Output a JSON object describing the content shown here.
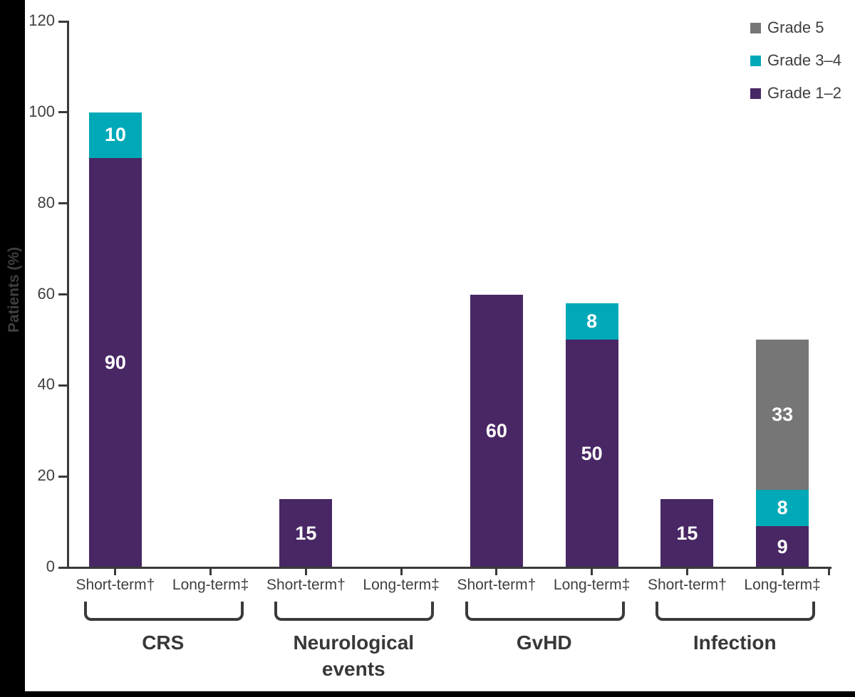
{
  "colors": {
    "background": "#ffffff",
    "frame": "#000000",
    "axis": "#3a3a3a",
    "text": "#3f3f3f",
    "bar_value_text": "#ffffff"
  },
  "chart_data": {
    "type": "bar",
    "stacked": true,
    "title": "",
    "xlabel": "",
    "ylabel": "Patients (%)",
    "ylim": [
      0,
      120
    ],
    "yticks": [
      0,
      20,
      40,
      60,
      80,
      100,
      120
    ],
    "grid": false,
    "legend_position": "top-right",
    "series": [
      {
        "key": "g12",
        "name": "Grade 1–2",
        "color": "#482764"
      },
      {
        "key": "g34",
        "name": "Grade 3–4",
        "color": "#00a9b8"
      },
      {
        "key": "g5",
        "name": "Grade 5",
        "color": "#767676"
      }
    ],
    "stack_order": [
      "g12",
      "g34",
      "g5"
    ],
    "legend": [
      {
        "series": "g5"
      },
      {
        "series": "g34"
      },
      {
        "series": "g12"
      }
    ],
    "groups": [
      {
        "label": "CRS",
        "bars": [
          {
            "label": "Short-term†",
            "values": {
              "g12": 90,
              "g34": 10,
              "g5": 0
            }
          },
          {
            "label": "Long-term‡",
            "values": {
              "g12": 0,
              "g34": 0,
              "g5": 0
            }
          }
        ]
      },
      {
        "label": "Neurological events",
        "bars": [
          {
            "label": "Short-term†",
            "values": {
              "g12": 15,
              "g34": 0,
              "g5": 0
            }
          },
          {
            "label": "Long-term‡",
            "values": {
              "g12": 0,
              "g34": 0,
              "g5": 0
            }
          }
        ]
      },
      {
        "label": "GvHD",
        "bars": [
          {
            "label": "Short-term†",
            "values": {
              "g12": 60,
              "g34": 0,
              "g5": 0
            }
          },
          {
            "label": "Long-term‡",
            "values": {
              "g12": 50,
              "g34": 8,
              "g5": 0
            }
          }
        ]
      },
      {
        "label": "Infection",
        "bars": [
          {
            "label": "Short-term†",
            "values": {
              "g12": 15,
              "g34": 0,
              "g5": 0
            }
          },
          {
            "label": "Long-term‡",
            "values": {
              "g12": 9,
              "g34": 8,
              "g5": 33
            }
          }
        ]
      }
    ]
  }
}
